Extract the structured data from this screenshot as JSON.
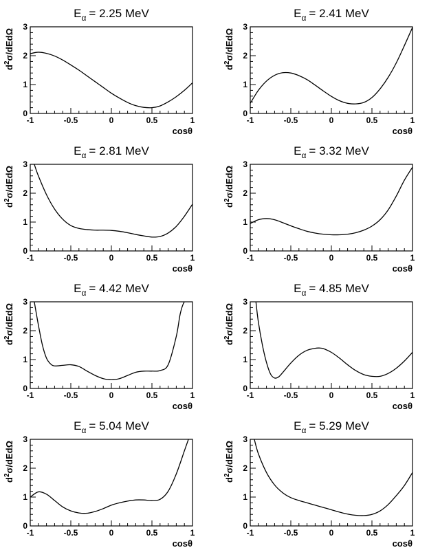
{
  "chart_data": [
    {
      "type": "line",
      "title_main": "E",
      "title_sub": "α",
      "title_rest": "= 2.25 MeV",
      "xlabel": "cosθ",
      "ylabel_main": "d",
      "ylabel_sup": "2",
      "ylabel_rest": "σ/dEdΩ",
      "xlim": [
        -1,
        1
      ],
      "ylim": [
        0,
        3
      ],
      "xticks": [
        "-1",
        "-0.5",
        "0",
        "0.5",
        "1"
      ],
      "yticks": [
        "0",
        "1",
        "2",
        "3"
      ],
      "series": [
        {
          "x": [
            -1,
            -0.9,
            -0.8,
            -0.7,
            -0.6,
            -0.5,
            -0.4,
            -0.3,
            -0.2,
            -0.1,
            0,
            0.1,
            0.2,
            0.3,
            0.4,
            0.5,
            0.6,
            0.7,
            0.8,
            0.9,
            1.0
          ],
          "y": [
            2.07,
            2.12,
            2.08,
            1.99,
            1.85,
            1.68,
            1.5,
            1.3,
            1.1,
            0.9,
            0.7,
            0.53,
            0.38,
            0.27,
            0.21,
            0.2,
            0.26,
            0.4,
            0.58,
            0.8,
            1.06
          ]
        }
      ]
    },
    {
      "type": "line",
      "title_main": "E",
      "title_sub": "α",
      "title_rest": "= 2.41 MeV",
      "xlabel": "cosθ",
      "ylabel_main": "d",
      "ylabel_sup": "2",
      "ylabel_rest": "σ/dEdΩ",
      "xlim": [
        -1,
        1
      ],
      "ylim": [
        0,
        3
      ],
      "xticks": [
        "-1",
        "-0.5",
        "0",
        "0.5",
        "1"
      ],
      "yticks": [
        "0",
        "1",
        "2",
        "3"
      ],
      "series": [
        {
          "x": [
            -1,
            -0.9,
            -0.8,
            -0.7,
            -0.6,
            -0.5,
            -0.4,
            -0.3,
            -0.2,
            -0.1,
            0,
            0.1,
            0.2,
            0.3,
            0.4,
            0.5,
            0.6,
            0.7,
            0.8,
            0.9,
            1.0
          ],
          "y": [
            0.35,
            0.8,
            1.12,
            1.32,
            1.41,
            1.4,
            1.31,
            1.17,
            0.98,
            0.78,
            0.59,
            0.44,
            0.35,
            0.33,
            0.38,
            0.55,
            0.85,
            1.25,
            1.75,
            2.35,
            2.98
          ]
        }
      ]
    },
    {
      "type": "line",
      "title_main": "E",
      "title_sub": "α",
      "title_rest": "= 2.81 MeV",
      "xlabel": "cosθ",
      "ylabel_main": "d",
      "ylabel_sup": "2",
      "ylabel_rest": "σ/dEdΩ",
      "xlim": [
        -1,
        1
      ],
      "ylim": [
        0,
        3
      ],
      "xticks": [
        "-1",
        "-0.5",
        "0",
        "0.5",
        "1"
      ],
      "yticks": [
        "0",
        "1",
        "2",
        "3"
      ],
      "series": [
        {
          "x": [
            -0.95,
            -0.9,
            -0.8,
            -0.7,
            -0.6,
            -0.5,
            -0.4,
            -0.3,
            -0.2,
            -0.1,
            0,
            0.1,
            0.2,
            0.3,
            0.4,
            0.5,
            0.6,
            0.7,
            0.8,
            0.9,
            1.0
          ],
          "y": [
            3.0,
            2.6,
            1.95,
            1.45,
            1.1,
            0.88,
            0.78,
            0.74,
            0.72,
            0.72,
            0.71,
            0.68,
            0.63,
            0.57,
            0.52,
            0.48,
            0.5,
            0.62,
            0.85,
            1.2,
            1.62
          ]
        }
      ]
    },
    {
      "type": "line",
      "title_main": "E",
      "title_sub": "α",
      "title_rest": "= 3.32 MeV",
      "xlabel": "cosθ",
      "ylabel_main": "d",
      "ylabel_sup": "2",
      "ylabel_rest": "σ/dEdΩ",
      "xlim": [
        -1,
        1
      ],
      "ylim": [
        0,
        3
      ],
      "xticks": [
        "-1",
        "-0.5",
        "0",
        "0.5",
        "1"
      ],
      "yticks": [
        "0",
        "1",
        "2",
        "3"
      ],
      "series": [
        {
          "x": [
            -1,
            -0.9,
            -0.8,
            -0.7,
            -0.6,
            -0.5,
            -0.4,
            -0.3,
            -0.2,
            -0.1,
            0,
            0.1,
            0.2,
            0.3,
            0.4,
            0.5,
            0.6,
            0.7,
            0.8,
            0.9,
            1.0
          ],
          "y": [
            0.95,
            1.08,
            1.12,
            1.08,
            0.98,
            0.87,
            0.77,
            0.68,
            0.62,
            0.58,
            0.56,
            0.56,
            0.58,
            0.63,
            0.72,
            0.86,
            1.08,
            1.42,
            1.9,
            2.45,
            2.9
          ]
        }
      ]
    },
    {
      "type": "line",
      "title_main": "E",
      "title_sub": "α",
      "title_rest": "= 4.42 MeV",
      "xlabel": "cosθ",
      "ylabel_main": "d",
      "ylabel_sup": "2",
      "ylabel_rest": "σ/dEdΩ",
      "xlim": [
        -1,
        1
      ],
      "ylim": [
        0,
        3
      ],
      "xticks": [
        "-1",
        "-0.5",
        "0",
        "0.5",
        "1"
      ],
      "yticks": [
        "0",
        "1",
        "2",
        "3"
      ],
      "series": [
        {
          "x": [
            -0.95,
            -0.9,
            -0.85,
            -0.8,
            -0.75,
            -0.7,
            -0.6,
            -0.5,
            -0.4,
            -0.3,
            -0.2,
            -0.1,
            0,
            0.1,
            0.2,
            0.3,
            0.4,
            0.5,
            0.6,
            0.7,
            0.8,
            0.85,
            0.9,
            0.95
          ],
          "y": [
            3.0,
            2.2,
            1.5,
            1.05,
            0.85,
            0.78,
            0.8,
            0.82,
            0.76,
            0.6,
            0.45,
            0.34,
            0.3,
            0.34,
            0.45,
            0.56,
            0.6,
            0.6,
            0.62,
            0.82,
            1.8,
            2.6,
            3.0,
            3.0
          ]
        }
      ]
    },
    {
      "type": "line",
      "title_main": "E",
      "title_sub": "α",
      "title_rest": "= 4.85 MeV",
      "xlabel": "cosθ",
      "ylabel_main": "d",
      "ylabel_sup": "2",
      "ylabel_rest": "σ/dEdΩ",
      "xlim": [
        -1,
        1
      ],
      "ylim": [
        0,
        3
      ],
      "xticks": [
        "-1",
        "-0.5",
        "0",
        "0.5",
        "1"
      ],
      "yticks": [
        "0",
        "1",
        "2",
        "3"
      ],
      "series": [
        {
          "x": [
            -0.93,
            -0.9,
            -0.85,
            -0.8,
            -0.75,
            -0.7,
            -0.65,
            -0.6,
            -0.5,
            -0.4,
            -0.3,
            -0.2,
            -0.15,
            -0.1,
            0,
            0.1,
            0.2,
            0.3,
            0.4,
            0.5,
            0.6,
            0.7,
            0.8,
            0.9,
            1.0
          ],
          "y": [
            3.0,
            2.3,
            1.5,
            0.9,
            0.5,
            0.36,
            0.4,
            0.55,
            0.88,
            1.15,
            1.32,
            1.39,
            1.4,
            1.38,
            1.25,
            1.05,
            0.82,
            0.62,
            0.48,
            0.42,
            0.42,
            0.52,
            0.7,
            0.95,
            1.25
          ]
        }
      ]
    },
    {
      "type": "line",
      "title_main": "E",
      "title_sub": "α",
      "title_rest": "= 5.04 MeV",
      "xlabel": "cosθ",
      "ylabel_main": "d",
      "ylabel_sup": "2",
      "ylabel_rest": "σ/dEdΩ",
      "xlim": [
        -1,
        1
      ],
      "ylim": [
        0,
        3
      ],
      "xticks": [
        "-1",
        "-0.5",
        "0",
        "0.5",
        "1"
      ],
      "yticks": [
        "0",
        "1",
        "2",
        "3"
      ],
      "series": [
        {
          "x": [
            -1,
            -0.9,
            -0.8,
            -0.7,
            -0.6,
            -0.5,
            -0.4,
            -0.3,
            -0.2,
            -0.1,
            0,
            0.1,
            0.2,
            0.3,
            0.4,
            0.5,
            0.6,
            0.7,
            0.8,
            0.9,
            0.95
          ],
          "y": [
            1.0,
            1.18,
            1.1,
            0.88,
            0.66,
            0.52,
            0.45,
            0.44,
            0.5,
            0.6,
            0.72,
            0.8,
            0.86,
            0.9,
            0.9,
            0.88,
            0.92,
            1.2,
            1.8,
            2.6,
            3.0
          ]
        }
      ]
    },
    {
      "type": "line",
      "title_main": "E",
      "title_sub": "α",
      "title_rest": "= 5.29 MeV",
      "xlabel": "cosθ",
      "ylabel_main": "d",
      "ylabel_sup": "2",
      "ylabel_rest": "σ/dEdΩ",
      "xlim": [
        -1,
        1
      ],
      "ylim": [
        0,
        3
      ],
      "xticks": [
        "-1",
        "-0.5",
        "0",
        "0.5",
        "1"
      ],
      "yticks": [
        "0",
        "1",
        "2",
        "3"
      ],
      "series": [
        {
          "x": [
            -0.95,
            -0.9,
            -0.8,
            -0.7,
            -0.6,
            -0.5,
            -0.4,
            -0.3,
            -0.2,
            -0.1,
            0,
            0.1,
            0.2,
            0.3,
            0.4,
            0.5,
            0.6,
            0.7,
            0.8,
            0.9,
            1.0
          ],
          "y": [
            3.0,
            2.5,
            1.85,
            1.42,
            1.15,
            0.98,
            0.88,
            0.8,
            0.72,
            0.64,
            0.56,
            0.48,
            0.41,
            0.37,
            0.36,
            0.4,
            0.52,
            0.74,
            1.05,
            1.4,
            1.85
          ]
        }
      ]
    }
  ]
}
